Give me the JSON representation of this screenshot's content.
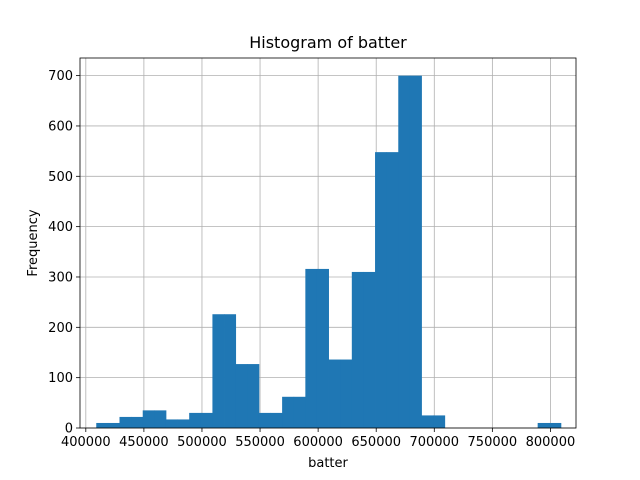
{
  "chart_data": {
    "type": "bar",
    "title": "Histogram of batter",
    "xlabel": "batter",
    "ylabel": "Frequency",
    "xlim": [
      395000,
      822000
    ],
    "ylim": [
      0,
      735
    ],
    "grid": true,
    "bar_color": "#1f77b4",
    "x_ticks": [
      400000,
      450000,
      500000,
      550000,
      600000,
      650000,
      700000,
      750000,
      800000
    ],
    "x_tick_labels": [
      "400000",
      "450000",
      "500000",
      "550000",
      "600000",
      "650000",
      "700000",
      "750000",
      "800000"
    ],
    "y_ticks": [
      0,
      100,
      200,
      300,
      400,
      500,
      600,
      700
    ],
    "y_tick_labels": [
      "0",
      "100",
      "200",
      "300",
      "400",
      "500",
      "600",
      "700"
    ],
    "bin_edges": [
      409000,
      419000,
      429000,
      439000,
      449000,
      459000,
      469000,
      479000,
      489000,
      499000,
      509000,
      519000,
      529000,
      539000,
      549000,
      559000,
      569000,
      579000,
      589000,
      599000,
      609000,
      619000,
      629000,
      639000,
      649000,
      659000,
      669000,
      679000,
      689000,
      699000,
      709000,
      719000,
      729000,
      739000,
      749000,
      759000,
      769000,
      779000,
      789000,
      799000,
      809000
    ],
    "counts": [
      10,
      10,
      22,
      22,
      35,
      35,
      17,
      17,
      30,
      30,
      226,
      226,
      127,
      127,
      30,
      30,
      62,
      62,
      316,
      316,
      136,
      136,
      310,
      310,
      548,
      548,
      700,
      700,
      25,
      25,
      0,
      0,
      0,
      0,
      0,
      0,
      0,
      0,
      10,
      10
    ]
  }
}
